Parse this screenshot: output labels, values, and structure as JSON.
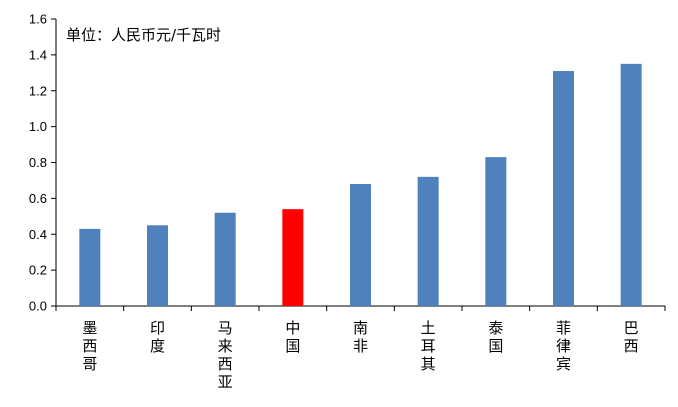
{
  "chart_data": {
    "type": "bar",
    "unit_label": "单位：人民币元/千瓦时",
    "categories": [
      "墨西哥",
      "印度",
      "马来西亚",
      "中国",
      "南非",
      "土耳其",
      "泰国",
      "菲律宾",
      "巴西"
    ],
    "values": [
      0.43,
      0.45,
      0.52,
      0.54,
      0.68,
      0.72,
      0.83,
      1.31,
      1.35
    ],
    "highlight_category": "中国",
    "bar_color": "#4f81bd",
    "highlight_color": "#ff0000",
    "ylim": [
      0,
      1.6
    ],
    "yticks": [
      "0.0",
      "0.2",
      "0.4",
      "0.6",
      "0.8",
      "1.0",
      "1.2",
      "1.4",
      "1.6"
    ],
    "grid": false,
    "legend": "none"
  }
}
